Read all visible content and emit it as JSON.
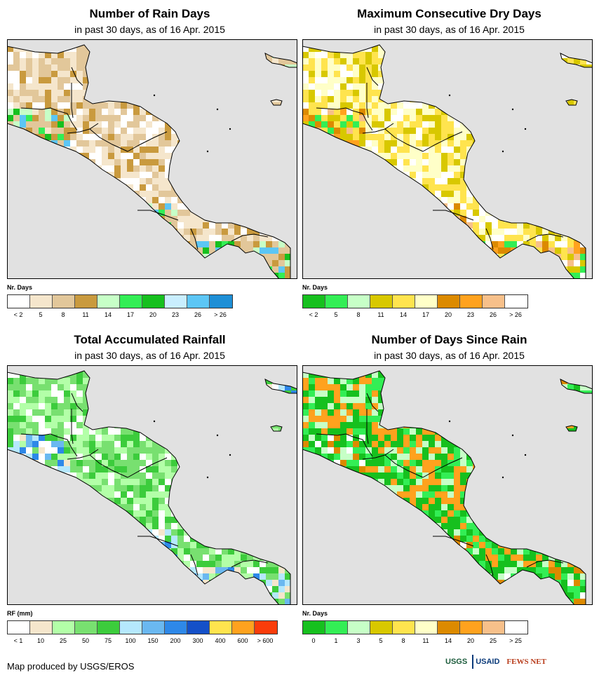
{
  "panels": [
    {
      "id": "rain-days",
      "title": "Number of Rain Days",
      "subtitle": "in past 30 days, as of 16 Apr. 2015",
      "legend_label": "Nr. Days",
      "legend_colors": [
        "#ffffff",
        "#f5e6cc",
        "#e2c79a",
        "#c99a3e",
        "#c7ffc7",
        "#33ee55",
        "#16c01e",
        "#c9eefe",
        "#5cc6f5",
        "#1e8fd6"
      ],
      "ticks": [
        "< 2",
        "5",
        "8",
        "11",
        "14",
        "17",
        "20",
        "23",
        "26",
        "> 26"
      ],
      "land_palette": [
        "#ffffff",
        "#f5e6cc",
        "#f5e6cc",
        "#e2c79a",
        "#e2c79a",
        "#c99a3e"
      ],
      "wet_palette": [
        "#33ee55",
        "#16c01e",
        "#5cc6f5",
        "#c7ffc7"
      ]
    },
    {
      "id": "max-dry-days",
      "title": "Maximum Consecutive Dry Days",
      "subtitle": "in past 30 days, as of 16 Apr. 2015",
      "legend_label": "Nr. Days",
      "legend_colors": [
        "#16c01e",
        "#33ee55",
        "#c7ffc7",
        "#d8c800",
        "#ffe44e",
        "#ffffc8",
        "#dc8a00",
        "#ffa21e",
        "#f7c08a",
        "#ffffff"
      ],
      "ticks": [
        "< 2",
        "5",
        "8",
        "11",
        "14",
        "17",
        "20",
        "23",
        "26",
        "> 26"
      ],
      "land_palette": [
        "#ffffc8",
        "#ffffc8",
        "#ffe44e",
        "#ffe44e",
        "#d8c800",
        "#ffffff"
      ],
      "wet_palette": [
        "#dc8a00",
        "#ffa21e",
        "#f7c08a",
        "#33ee55"
      ]
    },
    {
      "id": "total-rainfall",
      "title": "Total Accumulated Rainfall",
      "subtitle": "in past 30 days, as of 16 Apr. 2015",
      "legend_label": "RF (mm)",
      "legend_colors": [
        "#ffffff",
        "#f5e6cc",
        "#b3ffa8",
        "#78e070",
        "#3ccc3c",
        "#b5e8fd",
        "#6ab8f0",
        "#2e88e8",
        "#1450c8",
        "#ffe44e",
        "#ffa21e",
        "#fa3c0a"
      ],
      "ticks": [
        "< 1",
        "10",
        "25",
        "50",
        "75",
        "100",
        "150",
        "200",
        "300",
        "400",
        "600",
        "> 600"
      ],
      "land_palette": [
        "#b3ffa8",
        "#78e070",
        "#b3ffa8",
        "#3ccc3c",
        "#78e070",
        "#ffffff"
      ],
      "wet_palette": [
        "#6ab8f0",
        "#2e88e8",
        "#b5e8fd",
        "#f5e6cc"
      ]
    },
    {
      "id": "days-since-rain",
      "title": "Number of Days Since Rain",
      "subtitle": "in past 30 days, as of 16 Apr. 2015",
      "legend_label": "Nr. Days",
      "legend_colors": [
        "#16c01e",
        "#33ee55",
        "#c7ffc7",
        "#d8c800",
        "#ffe44e",
        "#ffffc8",
        "#dc8a00",
        "#ffa21e",
        "#f7c08a",
        "#ffffff"
      ],
      "ticks": [
        "0",
        "1",
        "3",
        "5",
        "8",
        "11",
        "14",
        "20",
        "25",
        "> 25"
      ],
      "land_palette": [
        "#ffa21e",
        "#ffa21e",
        "#16c01e",
        "#16c01e",
        "#33ee55",
        "#c7ffc7"
      ],
      "wet_palette": [
        "#16c01e",
        "#33ee55",
        "#ffffff",
        "#dc8a00"
      ]
    }
  ],
  "colors": {
    "ocean": "#e1e1e1",
    "border": "#000000"
  },
  "footer": {
    "credit": "Map produced by USGS/EROS"
  },
  "logos": {
    "usgs": "USGS",
    "usaid": "USAID",
    "fews": "FEWS NET"
  }
}
